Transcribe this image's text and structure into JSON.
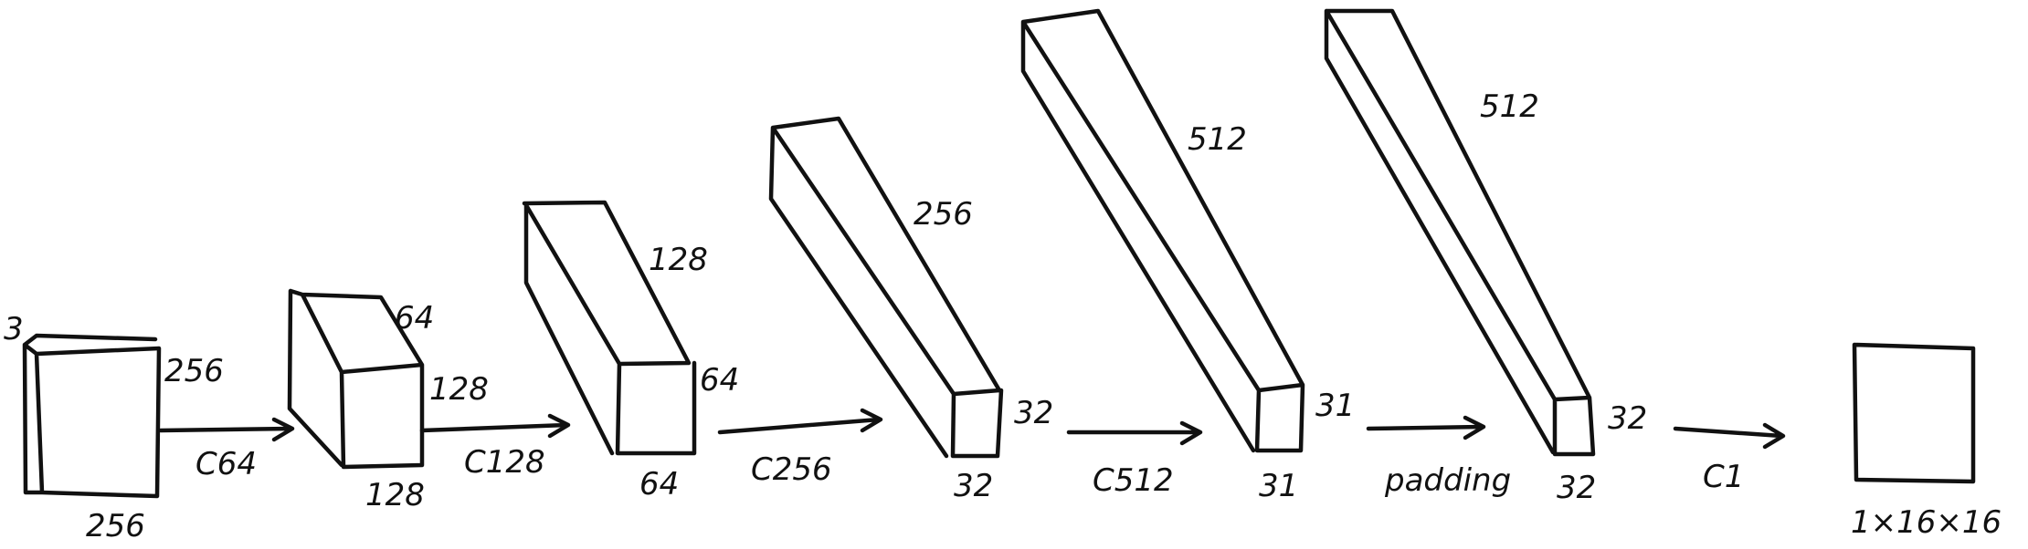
{
  "blocks": [
    {
      "id": "input",
      "dims": [
        "3",
        "256",
        "256"
      ]
    },
    {
      "id": "b1",
      "dims": [
        "64",
        "128",
        "128"
      ]
    },
    {
      "id": "b2",
      "dims": [
        "128",
        "64",
        "64"
      ]
    },
    {
      "id": "b3",
      "dims": [
        "256",
        "32",
        "32"
      ]
    },
    {
      "id": "b4",
      "dims": [
        "512",
        "31",
        "31"
      ]
    },
    {
      "id": "b5",
      "dims": [
        "512",
        "32",
        "32"
      ]
    },
    {
      "id": "output",
      "dims": [
        "1×16×16"
      ]
    }
  ],
  "arrows": [
    "C64",
    "C128",
    "C256",
    "C512",
    "padding",
    "C1"
  ],
  "colors": {
    "ink": "#111111",
    "paper": "#ffffff"
  }
}
